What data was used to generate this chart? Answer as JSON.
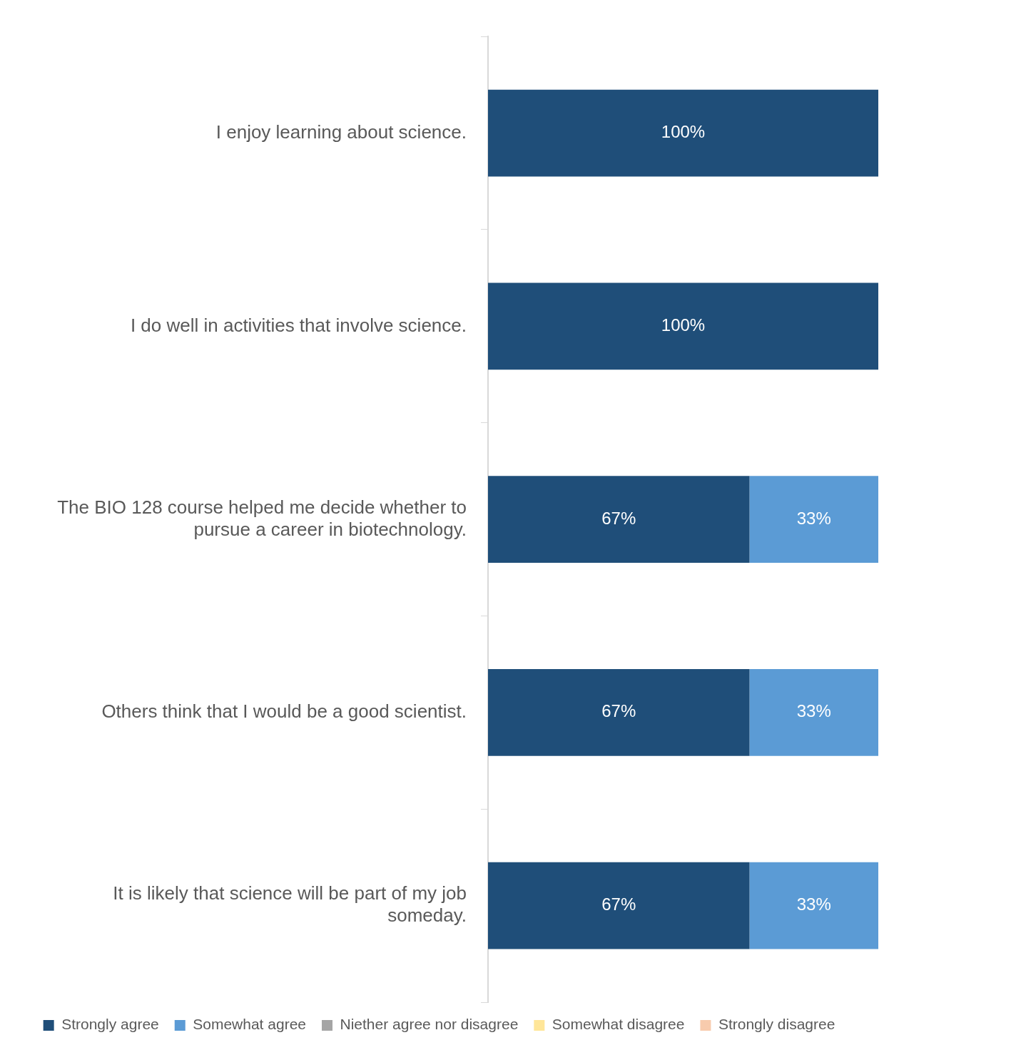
{
  "chart_data": {
    "type": "bar",
    "orientation": "horizontal",
    "stacked": true,
    "categories": [
      "I enjoy learning about science.",
      "I do well in activities that involve science.",
      "The BIO 128 course helped me decide whether to pursue a career in biotechnology.",
      "Others think that I would be a good scientist.",
      "It is likely that science will be part of my job someday."
    ],
    "tick_labels": "y",
    "grid": false,
    "legend": "bottom",
    "series": [
      {
        "name": "Strongly agree",
        "color": "#1f4e79",
        "values": [
          100,
          100,
          67,
          67,
          67
        ],
        "value_labels": [
          "100%",
          "100%",
          "67%",
          "67%",
          "67%"
        ]
      },
      {
        "name": "Somewhat agree",
        "color": "#5b9bd5",
        "values": [
          0,
          0,
          33,
          33,
          33
        ],
        "value_labels": [
          null,
          null,
          "33%",
          "33%",
          "33%"
        ]
      },
      {
        "name": "Niether agree nor disagree",
        "color": "#a5a5a5",
        "values": [
          0,
          0,
          0,
          0,
          0
        ]
      },
      {
        "name": "Somewhat disagree",
        "color": "#ffe699",
        "values": [
          0,
          0,
          0,
          0,
          0
        ]
      },
      {
        "name": "Strongly disagree",
        "color": "#f8cbad",
        "values": [
          0,
          0,
          0,
          0,
          0
        ]
      }
    ]
  }
}
